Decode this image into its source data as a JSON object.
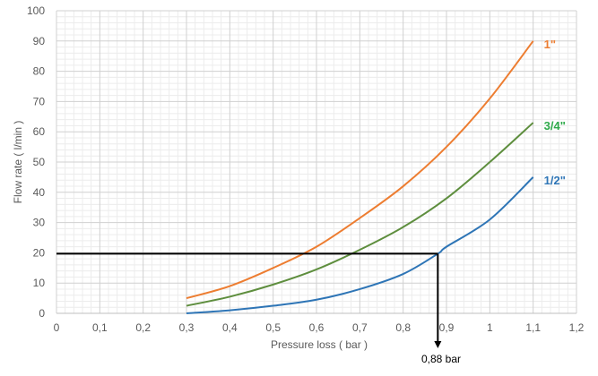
{
  "chart_data": {
    "type": "line",
    "title": "",
    "xlabel": "Pressure loss  ( bar )",
    "ylabel": "Flow rate  ( l/min )",
    "xlim": [
      0,
      1.2
    ],
    "ylim": [
      0,
      100
    ],
    "x_ticks": [
      "0",
      "0,1",
      "0,2",
      "0,3",
      "0,4",
      "0,5",
      "0,6",
      "0,7",
      "0,8",
      "0,9",
      "1",
      "1,1",
      "1,2"
    ],
    "y_ticks": [
      "0",
      "10",
      "20",
      "30",
      "40",
      "50",
      "60",
      "70",
      "80",
      "90",
      "100"
    ],
    "grid": {
      "major": true,
      "minor": true
    },
    "series": [
      {
        "name": "1\"",
        "color": "#ED7D31",
        "label_color": "#ED7D31",
        "x": [
          0.3,
          0.4,
          0.5,
          0.6,
          0.7,
          0.8,
          0.9,
          1.0,
          1.1
        ],
        "y": [
          5,
          9,
          15,
          22,
          31.5,
          42,
          55,
          71,
          90
        ]
      },
      {
        "name": "3/4\"",
        "color": "#5E8E3E",
        "label_color": "#2EAA4A",
        "x": [
          0.3,
          0.4,
          0.5,
          0.6,
          0.7,
          0.8,
          0.9,
          1.0,
          1.1
        ],
        "y": [
          2.5,
          5.5,
          9.5,
          14.5,
          21,
          28.5,
          38,
          50,
          63
        ]
      },
      {
        "name": "1/2\"",
        "color": "#2E75B6",
        "label_color": "#2E75B6",
        "x": [
          0.3,
          0.4,
          0.5,
          0.6,
          0.7,
          0.8,
          0.88,
          0.9,
          1.0,
          1.1
        ],
        "y": [
          0,
          1,
          2.5,
          4.5,
          8,
          13,
          19.7,
          22,
          31,
          45
        ]
      }
    ],
    "annotation": {
      "x": 0.88,
      "y": 19.7,
      "label": "0,88 bar",
      "color": "#000000"
    }
  }
}
